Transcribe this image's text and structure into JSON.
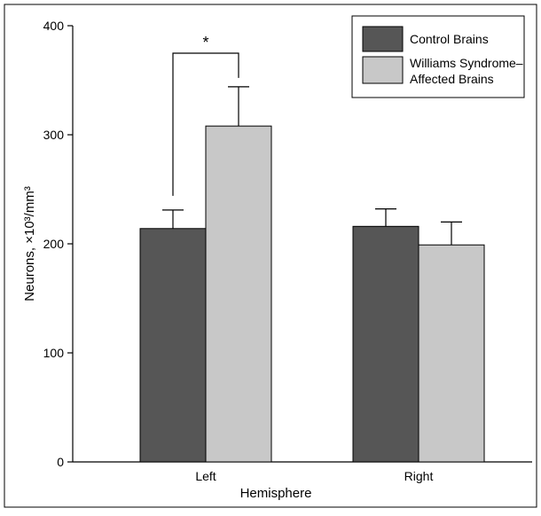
{
  "chart_data": {
    "type": "bar",
    "title": "",
    "xlabel": "Hemisphere",
    "ylabel": "Neurons, ×10³/mm³",
    "ylim": [
      0,
      400
    ],
    "yticks": [
      0,
      100,
      200,
      300,
      400
    ],
    "ytick_labels": [
      "0",
      "100",
      "200",
      "300",
      "400"
    ],
    "categories": [
      "Left",
      "Right"
    ],
    "series": [
      {
        "name": "Control Brains",
        "color": "#565656",
        "values": [
          214,
          216
        ],
        "error_upper": [
          231,
          232
        ]
      },
      {
        "name": "Williams Syndrome–Affected Brains",
        "name_lines": [
          "Williams Syndrome–",
          "Affected Brains"
        ],
        "color": "#c8c8c8",
        "values": [
          308,
          199
        ],
        "error_upper": [
          344,
          220
        ]
      }
    ],
    "significance": {
      "category": "Left",
      "label": "*"
    },
    "legend_position": "top-right",
    "grid": false
  }
}
